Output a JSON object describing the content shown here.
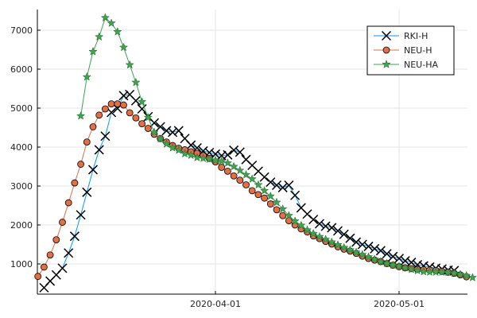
{
  "chart_data": {
    "type": "line",
    "x_axis": {
      "kind": "date",
      "range": [
        "2020-03-02",
        "2020-05-10"
      ],
      "ticks": [
        {
          "value": "2020-04-01",
          "label": "2020-04-01"
        },
        {
          "value": "2020-05-01",
          "label": "2020-05-01"
        }
      ]
    },
    "y_axis": {
      "range": [
        200,
        7500
      ],
      "ticks": [
        1000,
        2000,
        3000,
        4000,
        5000,
        6000,
        7000
      ]
    },
    "grid": true,
    "legend_position": "top-right",
    "colors": {
      "RKI-H": "#009AFA",
      "NEU-H": "#E26F46",
      "NEU-HA": "#3EA44E"
    },
    "series": [
      {
        "name": "RKI-H",
        "marker": "x-cross",
        "color": "#009AFA",
        "marker_color": "#000000",
        "points": [
          [
            "2020-03-04",
            390
          ],
          [
            "2020-03-05",
            560
          ],
          [
            "2020-03-06",
            720
          ],
          [
            "2020-03-07",
            890
          ],
          [
            "2020-03-08",
            1280
          ],
          [
            "2020-03-09",
            1710
          ],
          [
            "2020-03-10",
            2260
          ],
          [
            "2020-03-11",
            2840
          ],
          [
            "2020-03-12",
            3420
          ],
          [
            "2020-03-13",
            3930
          ],
          [
            "2020-03-14",
            4280
          ],
          [
            "2020-03-15",
            4890
          ],
          [
            "2020-03-16",
            4990
          ],
          [
            "2020-03-17",
            5320
          ],
          [
            "2020-03-18",
            5350
          ],
          [
            "2020-03-19",
            5190
          ],
          [
            "2020-03-20",
            4980
          ],
          [
            "2020-03-21",
            4780
          ],
          [
            "2020-03-22",
            4620
          ],
          [
            "2020-03-23",
            4520
          ],
          [
            "2020-03-24",
            4420
          ],
          [
            "2020-03-25",
            4380
          ],
          [
            "2020-03-26",
            4420
          ],
          [
            "2020-03-27",
            4220
          ],
          [
            "2020-03-28",
            4050
          ],
          [
            "2020-03-29",
            3980
          ],
          [
            "2020-03-30",
            3900
          ],
          [
            "2020-03-31",
            3860
          ],
          [
            "2020-04-01",
            3820
          ],
          [
            "2020-04-02",
            3780
          ],
          [
            "2020-04-03",
            3800
          ],
          [
            "2020-04-04",
            3920
          ],
          [
            "2020-04-05",
            3870
          ],
          [
            "2020-04-06",
            3680
          ],
          [
            "2020-04-07",
            3530
          ],
          [
            "2020-04-08",
            3380
          ],
          [
            "2020-04-09",
            3230
          ],
          [
            "2020-04-10",
            3100
          ],
          [
            "2020-04-11",
            3020
          ],
          [
            "2020-04-12",
            2960
          ],
          [
            "2020-04-13",
            3020
          ],
          [
            "2020-04-14",
            2760
          ],
          [
            "2020-04-15",
            2440
          ],
          [
            "2020-04-16",
            2280
          ],
          [
            "2020-04-17",
            2140
          ],
          [
            "2020-04-18",
            2030
          ],
          [
            "2020-04-19",
            1970
          ],
          [
            "2020-04-20",
            1930
          ],
          [
            "2020-04-21",
            1850
          ],
          [
            "2020-04-22",
            1760
          ],
          [
            "2020-04-23",
            1660
          ],
          [
            "2020-04-24",
            1560
          ],
          [
            "2020-04-25",
            1500
          ],
          [
            "2020-04-26",
            1450
          ],
          [
            "2020-04-27",
            1390
          ],
          [
            "2020-04-28",
            1340
          ],
          [
            "2020-04-29",
            1260
          ],
          [
            "2020-04-30",
            1190
          ],
          [
            "2020-05-01",
            1140
          ],
          [
            "2020-05-02",
            1080
          ],
          [
            "2020-05-03",
            1040
          ],
          [
            "2020-05-04",
            980
          ],
          [
            "2020-05-05",
            950
          ],
          [
            "2020-05-06",
            920
          ],
          [
            "2020-05-07",
            890
          ],
          [
            "2020-05-08",
            870
          ],
          [
            "2020-05-09",
            840
          ],
          [
            "2020-05-10",
            830
          ]
        ]
      },
      {
        "name": "NEU-H",
        "marker": "circle",
        "color": "#E26F46",
        "marker_color": "#E26F46",
        "points": [
          [
            "2020-03-03",
            680
          ],
          [
            "2020-03-04",
            920
          ],
          [
            "2020-03-05",
            1230
          ],
          [
            "2020-03-06",
            1620
          ],
          [
            "2020-03-07",
            2070
          ],
          [
            "2020-03-08",
            2570
          ],
          [
            "2020-03-09",
            3080
          ],
          [
            "2020-03-10",
            3560
          ],
          [
            "2020-03-11",
            4130
          ],
          [
            "2020-03-12",
            4520
          ],
          [
            "2020-03-13",
            4820
          ],
          [
            "2020-03-14",
            4980
          ],
          [
            "2020-03-15",
            5110
          ],
          [
            "2020-03-16",
            5110
          ],
          [
            "2020-03-17",
            5080
          ],
          [
            "2020-03-18",
            4880
          ],
          [
            "2020-03-19",
            4750
          ],
          [
            "2020-03-20",
            4600
          ],
          [
            "2020-03-21",
            4480
          ],
          [
            "2020-03-22",
            4330
          ],
          [
            "2020-03-23",
            4220
          ],
          [
            "2020-03-24",
            4130
          ],
          [
            "2020-03-25",
            4040
          ],
          [
            "2020-03-26",
            3970
          ],
          [
            "2020-03-27",
            3930
          ],
          [
            "2020-03-28",
            3880
          ],
          [
            "2020-03-29",
            3840
          ],
          [
            "2020-03-30",
            3780
          ],
          [
            "2020-03-31",
            3710
          ],
          [
            "2020-04-01",
            3620
          ],
          [
            "2020-04-02",
            3480
          ],
          [
            "2020-04-03",
            3380
          ],
          [
            "2020-04-04",
            3260
          ],
          [
            "2020-04-05",
            3150
          ],
          [
            "2020-04-06",
            3030
          ],
          [
            "2020-04-07",
            2880
          ],
          [
            "2020-04-08",
            2780
          ],
          [
            "2020-04-09",
            2690
          ],
          [
            "2020-04-10",
            2540
          ],
          [
            "2020-04-11",
            2390
          ],
          [
            "2020-04-12",
            2240
          ],
          [
            "2020-04-13",
            2110
          ],
          [
            "2020-04-14",
            2000
          ],
          [
            "2020-04-15",
            1900
          ],
          [
            "2020-04-16",
            1820
          ],
          [
            "2020-04-17",
            1720
          ],
          [
            "2020-04-18",
            1650
          ],
          [
            "2020-04-19",
            1580
          ],
          [
            "2020-04-20",
            1510
          ],
          [
            "2020-04-21",
            1440
          ],
          [
            "2020-04-22",
            1380
          ],
          [
            "2020-04-23",
            1330
          ],
          [
            "2020-04-24",
            1270
          ],
          [
            "2020-04-25",
            1200
          ],
          [
            "2020-04-26",
            1140
          ],
          [
            "2020-04-27",
            1100
          ],
          [
            "2020-04-28",
            1060
          ],
          [
            "2020-04-29",
            1010
          ],
          [
            "2020-04-30",
            970
          ],
          [
            "2020-05-01",
            930
          ],
          [
            "2020-05-02",
            900
          ],
          [
            "2020-05-03",
            880
          ],
          [
            "2020-05-04",
            860
          ],
          [
            "2020-05-05",
            850
          ],
          [
            "2020-05-06",
            840
          ],
          [
            "2020-05-07",
            830
          ],
          [
            "2020-05-08",
            810
          ],
          [
            "2020-05-09",
            790
          ],
          [
            "2020-05-10",
            760
          ],
          [
            "2020-05-11",
            720
          ],
          [
            "2020-05-12",
            670
          ]
        ]
      },
      {
        "name": "NEU-HA",
        "marker": "star",
        "color": "#3EA44E",
        "marker_color": "#3EA44E",
        "points": [
          [
            "2020-03-10",
            4800
          ],
          [
            "2020-03-11",
            5800
          ],
          [
            "2020-03-12",
            6450
          ],
          [
            "2020-03-13",
            6830
          ],
          [
            "2020-03-14",
            7320
          ],
          [
            "2020-03-15",
            7180
          ],
          [
            "2020-03-16",
            6960
          ],
          [
            "2020-03-17",
            6560
          ],
          [
            "2020-03-18",
            6110
          ],
          [
            "2020-03-19",
            5660
          ],
          [
            "2020-03-20",
            5160
          ],
          [
            "2020-03-21",
            4760
          ],
          [
            "2020-03-22",
            4380
          ],
          [
            "2020-03-23",
            4210
          ],
          [
            "2020-03-24",
            4080
          ],
          [
            "2020-03-25",
            3980
          ],
          [
            "2020-03-26",
            3920
          ],
          [
            "2020-03-27",
            3830
          ],
          [
            "2020-03-28",
            3790
          ],
          [
            "2020-03-29",
            3730
          ],
          [
            "2020-03-30",
            3710
          ],
          [
            "2020-03-31",
            3690
          ],
          [
            "2020-04-01",
            3660
          ],
          [
            "2020-04-02",
            3640
          ],
          [
            "2020-04-03",
            3590
          ],
          [
            "2020-04-04",
            3500
          ],
          [
            "2020-04-05",
            3400
          ],
          [
            "2020-04-06",
            3290
          ],
          [
            "2020-04-07",
            3180
          ],
          [
            "2020-04-08",
            3030
          ],
          [
            "2020-04-09",
            2880
          ],
          [
            "2020-04-10",
            2740
          ],
          [
            "2020-04-11",
            2580
          ],
          [
            "2020-04-12",
            2410
          ],
          [
            "2020-04-13",
            2240
          ],
          [
            "2020-04-14",
            2100
          ],
          [
            "2020-04-15",
            1990
          ],
          [
            "2020-04-16",
            1870
          ],
          [
            "2020-04-17",
            1780
          ],
          [
            "2020-04-18",
            1700
          ],
          [
            "2020-04-19",
            1630
          ],
          [
            "2020-04-20",
            1560
          ],
          [
            "2020-04-21",
            1490
          ],
          [
            "2020-04-22",
            1420
          ],
          [
            "2020-04-23",
            1360
          ],
          [
            "2020-04-24",
            1300
          ],
          [
            "2020-04-25",
            1240
          ],
          [
            "2020-04-26",
            1180
          ],
          [
            "2020-04-27",
            1120
          ],
          [
            "2020-04-28",
            1060
          ],
          [
            "2020-04-29",
            1010
          ],
          [
            "2020-04-30",
            970
          ],
          [
            "2020-05-01",
            940
          ],
          [
            "2020-05-02",
            900
          ],
          [
            "2020-05-03",
            860
          ],
          [
            "2020-05-04",
            830
          ],
          [
            "2020-05-05",
            800
          ],
          [
            "2020-05-06",
            790
          ],
          [
            "2020-05-07",
            790
          ],
          [
            "2020-05-08",
            790
          ],
          [
            "2020-05-09",
            780
          ],
          [
            "2020-05-10",
            760
          ],
          [
            "2020-05-11",
            730
          ],
          [
            "2020-05-12",
            700
          ],
          [
            "2020-05-13",
            650
          ]
        ]
      }
    ]
  }
}
